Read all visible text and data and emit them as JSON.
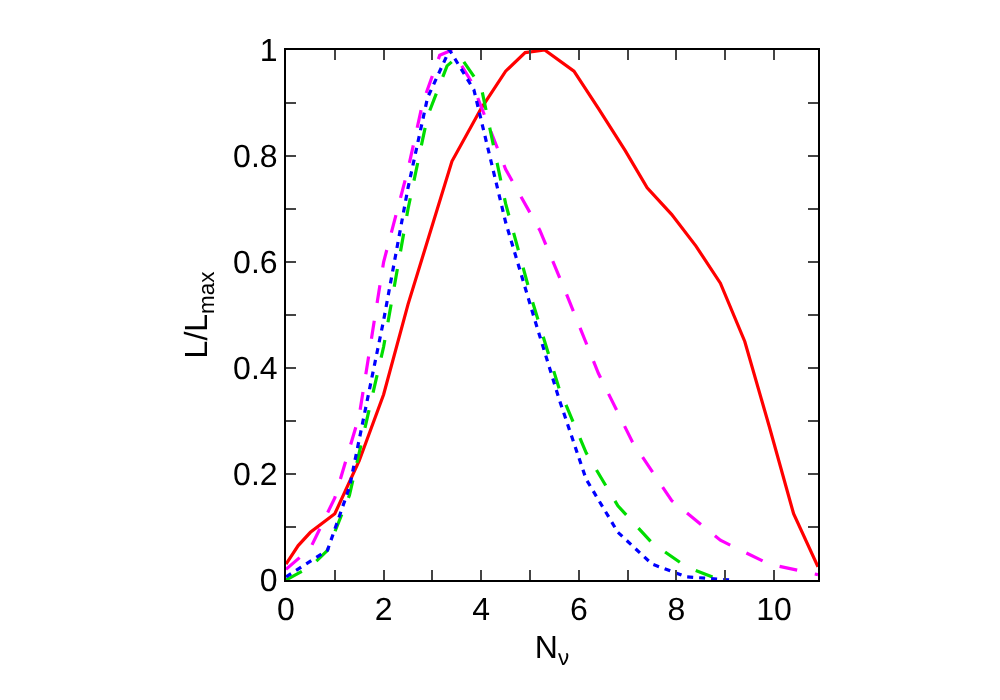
{
  "chart_data": {
    "type": "line",
    "xlabel": "N$_{ν}$",
    "ylabel": "L/L$_{max}$",
    "xlim": [
      0,
      10.9
    ],
    "ylim": [
      0,
      1
    ],
    "xticks": [
      0,
      {
        "value": 1,
        "label": null
      },
      2,
      {
        "value": 3,
        "label": null
      },
      4,
      {
        "value": 5,
        "label": null
      },
      6,
      {
        "value": 7,
        "label": null
      },
      8,
      {
        "value": 9,
        "label": null
      },
      10
    ],
    "yticks": [
      0,
      {
        "value": 0.1,
        "label": null
      },
      0.2,
      {
        "value": 0.3,
        "label": null
      },
      0.4,
      {
        "value": 0.5,
        "label": null
      },
      0.6,
      {
        "value": 0.7,
        "label": null
      },
      0.8,
      {
        "value": 0.9,
        "label": null
      },
      1
    ],
    "marker": "none",
    "series": [
      {
        "color": "#ff0000",
        "line_style": "solid",
        "x": [
          0,
          0.25,
          0.5,
          1,
          1.5,
          2,
          2.5,
          3.4,
          4,
          4.5,
          4.9,
          5.3,
          5.9,
          6.4,
          6.95,
          7.4,
          7.9,
          8.4,
          8.9,
          9.4,
          9.9,
          10.4,
          10.9
        ],
        "values": [
          0.03,
          0.065,
          0.09,
          0.125,
          0.225,
          0.35,
          0.52,
          0.79,
          0.89,
          0.96,
          0.995,
          1,
          0.96,
          0.89,
          0.81,
          0.74,
          0.69,
          0.63,
          0.56,
          0.45,
          0.29,
          0.125,
          0.025
        ]
      },
      {
        "color": "#ff00ff",
        "line_style": "dashed",
        "x": [
          0,
          0.5,
          1,
          1.5,
          2,
          2.5,
          2.8,
          3.15,
          3.4,
          3.8,
          4.5,
          5.2,
          5.7,
          6.4,
          7.1,
          7.9,
          8.9,
          9.9,
          10.9
        ],
        "values": [
          0.02,
          0.06,
          0.155,
          0.31,
          0.6,
          0.775,
          0.9,
          0.99,
          1,
          0.94,
          0.775,
          0.66,
          0.55,
          0.39,
          0.26,
          0.15,
          0.075,
          0.03,
          0.01
        ]
      },
      {
        "color": "#00dd00",
        "line_style": "dashed",
        "x": [
          0,
          0.5,
          0.85,
          1.3,
          2,
          2.5,
          2.9,
          3.3,
          3.55,
          4,
          4.5,
          5.05,
          5.6,
          6.15,
          6.8,
          7.5,
          8.2,
          8.9
        ],
        "values": [
          0,
          0.025,
          0.056,
          0.16,
          0.44,
          0.7,
          0.875,
          0.97,
          0.99,
          0.93,
          0.71,
          0.525,
          0.36,
          0.24,
          0.14,
          0.07,
          0.025,
          0
        ]
      },
      {
        "color": "#0000ff",
        "line_style": "dotted",
        "x": [
          0,
          0.85,
          1.3,
          2,
          2.5,
          2.9,
          3.35,
          3.85,
          4.5,
          5.1,
          5.6,
          6.15,
          6.8,
          7.5,
          8.2,
          9.1
        ],
        "values": [
          0.006,
          0.056,
          0.175,
          0.49,
          0.74,
          0.91,
          1,
          0.925,
          0.675,
          0.49,
          0.34,
          0.19,
          0.09,
          0.03,
          0.006,
          0
        ]
      }
    ]
  }
}
